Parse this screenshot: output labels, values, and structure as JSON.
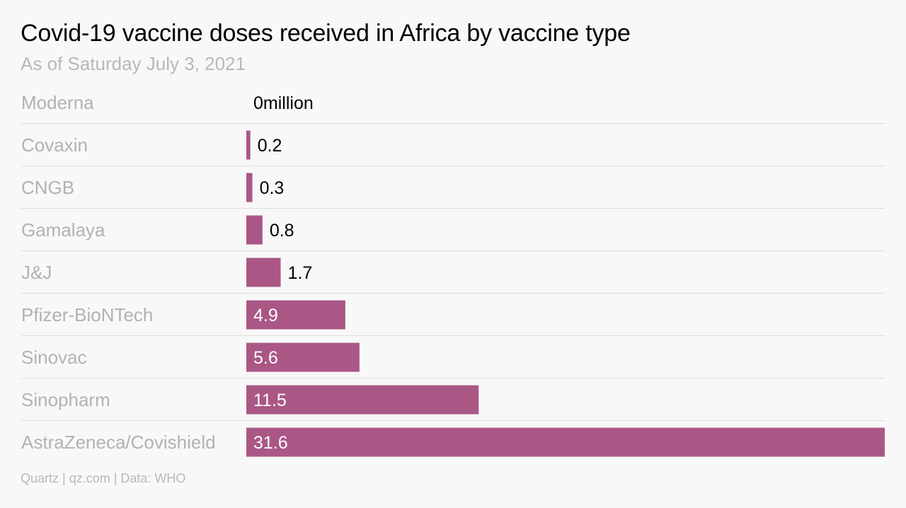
{
  "colors": {
    "bar": "#aa5786",
    "label_outside": "#000000",
    "label_inside": "#ffffff",
    "category": "#b2b2b2",
    "gridline": "#dddddd",
    "background": "#f8f8f8"
  },
  "footer": "Quartz | qz.com | Data: WHO",
  "chart_data": {
    "type": "bar",
    "orientation": "horizontal",
    "title": "Covid-19 vaccine doses received in Africa by vaccine type",
    "subtitle": "As of Saturday July 3, 2021",
    "unit": "million",
    "categories": [
      "Moderna",
      "Covaxin",
      "CNGB",
      "Gamalaya",
      "J&J",
      "Pfizer-BioNTech",
      "Sinovac",
      "Sinopharm",
      "AstraZeneca/Covishield"
    ],
    "values": [
      0,
      0.2,
      0.3,
      0.8,
      1.7,
      4.9,
      5.6,
      11.5,
      31.6
    ],
    "value_labels": [
      "0million",
      "0.2",
      "0.3",
      "0.8",
      "1.7",
      "4.9",
      "5.6",
      "11.5",
      "31.6"
    ],
    "xlim": [
      0,
      31.6
    ],
    "grid": true,
    "legend": "none"
  }
}
